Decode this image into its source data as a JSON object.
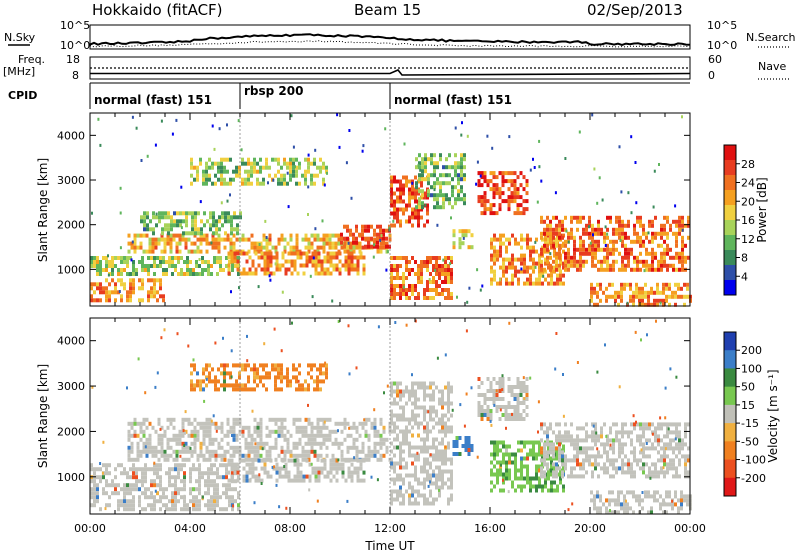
{
  "header": {
    "station": "Hokkaido (fitACF)",
    "beam": "Beam 15",
    "date": "02/Sep/2013"
  },
  "top_panels": {
    "nsky": {
      "label": "N.Sky",
      "yticks_left": [
        "10^5",
        "10^0"
      ],
      "yticks_right": [
        "10^5",
        "10^0"
      ],
      "right_label": "N.Search"
    },
    "freq": {
      "label_line1": "Freq.",
      "label_line2": "[MHz]",
      "yticks_left": [
        "18",
        "8"
      ],
      "yticks_right": [
        "60",
        "0"
      ],
      "right_label": "Nave"
    },
    "cpid": {
      "label": "CPID",
      "modes": [
        {
          "name": "normal (fast) 151",
          "start_hour": 0
        },
        {
          "name": "rbsp 200",
          "start_hour": 6
        },
        {
          "name": "normal (fast) 151",
          "start_hour": 12
        }
      ]
    }
  },
  "x_axis": {
    "title": "Time UT",
    "ticks": [
      "00:00",
      "04:00",
      "08:00",
      "12:00",
      "16:00",
      "20:00",
      "00:00"
    ],
    "range_hours": [
      0,
      24
    ]
  },
  "colors": {
    "power": [
      "#0000ee",
      "#2e4fa8",
      "#3a8a5a",
      "#5fb55c",
      "#a8d35a",
      "#f0d040",
      "#f5a020",
      "#f07020",
      "#e83c20",
      "#e01010"
    ],
    "velocity": [
      "#2040b0",
      "#3b7ec8",
      "#3a8a40",
      "#78c850",
      "#c0c0b8",
      "#f0b040",
      "#f08020",
      "#ec5020",
      "#e01818"
    ],
    "velocity_gray": "#c3c3bc"
  },
  "chart_data": [
    {
      "type": "heatmap",
      "name": "power",
      "xlabel": "",
      "ylabel": "Slant Range [km]",
      "yticks": [
        "1000",
        "2000",
        "3000",
        "4000"
      ],
      "ylim": [
        180,
        4500
      ],
      "xlim": [
        0,
        24
      ],
      "colorbar": {
        "label": "Power [dB]",
        "ticks": [
          "28",
          "24",
          "20",
          "16",
          "12",
          "8",
          "4"
        ],
        "range": [
          0,
          32
        ]
      },
      "echo_bands": [
        {
          "t0": 0.0,
          "t1": 3.0,
          "r0": 300,
          "r1": 800,
          "value": 22
        },
        {
          "t0": 0.0,
          "t1": 6.0,
          "r0": 900,
          "r1": 1300,
          "value": 14
        },
        {
          "t0": 1.5,
          "t1": 12.0,
          "r0": 1400,
          "r1": 1800,
          "value": 20
        },
        {
          "t0": 2.0,
          "t1": 6.0,
          "r0": 1800,
          "r1": 2300,
          "value": 12
        },
        {
          "t0": 4.0,
          "t1": 9.5,
          "r0": 2900,
          "r1": 3500,
          "value": 14
        },
        {
          "t0": 5.5,
          "t1": 11.0,
          "r0": 900,
          "r1": 1400,
          "value": 22
        },
        {
          "t0": 10.0,
          "t1": 12.0,
          "r0": 1500,
          "r1": 2000,
          "value": 28
        },
        {
          "t0": 12.0,
          "t1": 13.5,
          "r0": 2000,
          "r1": 3100,
          "value": 26
        },
        {
          "t0": 12.0,
          "t1": 14.5,
          "r0": 400,
          "r1": 1300,
          "value": 24
        },
        {
          "t0": 13.0,
          "t1": 15.0,
          "r0": 2400,
          "r1": 3600,
          "value": 12
        },
        {
          "t0": 14.5,
          "t1": 15.3,
          "r0": 1500,
          "r1": 1900,
          "value": 18
        },
        {
          "t0": 15.5,
          "t1": 17.5,
          "r0": 2300,
          "r1": 3200,
          "value": 26
        },
        {
          "t0": 16.0,
          "t1": 19.0,
          "r0": 700,
          "r1": 1800,
          "value": 22
        },
        {
          "t0": 18.0,
          "t1": 24.0,
          "r0": 1000,
          "r1": 2200,
          "value": 24
        },
        {
          "t0": 20.0,
          "t1": 24.0,
          "r0": 250,
          "r1": 700,
          "value": 22
        }
      ]
    },
    {
      "type": "heatmap",
      "name": "velocity",
      "xlabel": "Time UT",
      "ylabel": "Slant Range [km]",
      "yticks": [
        "1000",
        "2000",
        "3000",
        "4000"
      ],
      "ylim": [
        180,
        4500
      ],
      "xlim": [
        0,
        24
      ],
      "colorbar": {
        "label": "Velocity [m s⁻¹]",
        "ticks": [
          "200",
          "100",
          "50",
          "15",
          "-15",
          "-50",
          "-100",
          "-200"
        ],
        "range": [
          -250,
          250
        ]
      },
      "echo_bands": [
        {
          "t0": 0.0,
          "t1": 6.0,
          "r0": 300,
          "r1": 1300,
          "value": 0
        },
        {
          "t0": 1.5,
          "t1": 12.0,
          "r0": 1400,
          "r1": 2300,
          "value": 0
        },
        {
          "t0": 4.0,
          "t1": 9.5,
          "r0": 2900,
          "r1": 3500,
          "value": -60
        },
        {
          "t0": 5.5,
          "t1": 11.0,
          "r0": 900,
          "r1": 1400,
          "value": 0
        },
        {
          "t0": 12.0,
          "t1": 14.5,
          "r0": 400,
          "r1": 3100,
          "value": 0
        },
        {
          "t0": 14.5,
          "t1": 15.3,
          "r0": 1500,
          "r1": 1900,
          "value": 120
        },
        {
          "t0": 15.5,
          "t1": 17.5,
          "r0": 2300,
          "r1": 3200,
          "value": 0
        },
        {
          "t0": 16.0,
          "t1": 19.0,
          "r0": 700,
          "r1": 1800,
          "value": 40
        },
        {
          "t0": 18.0,
          "t1": 24.0,
          "r0": 1000,
          "r1": 2200,
          "value": 0
        },
        {
          "t0": 20.0,
          "t1": 24.0,
          "r0": 250,
          "r1": 700,
          "value": 0
        }
      ]
    }
  ]
}
